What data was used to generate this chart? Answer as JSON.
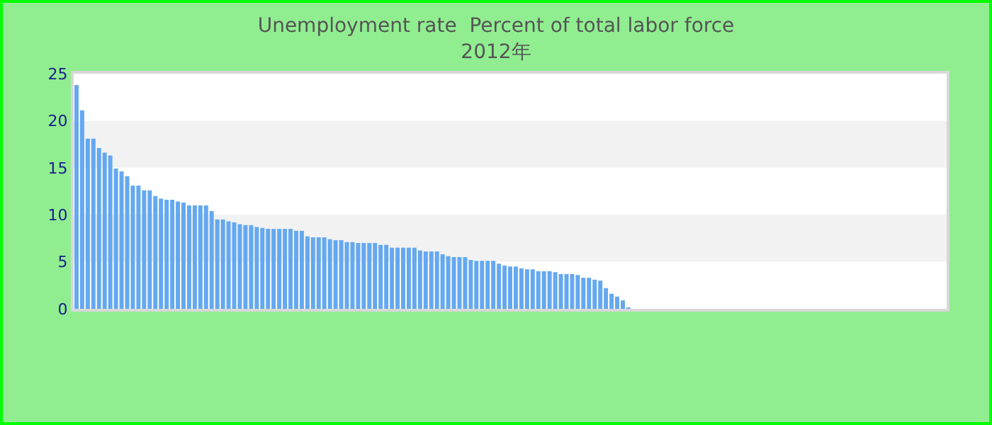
{
  "chart_data": {
    "type": "bar",
    "title": "Unemployment rate  Percent of total labor force\n2012年",
    "categories": [
      null,
      null,
      null,
      null,
      null,
      null,
      null,
      null,
      null,
      null,
      null,
      null,
      null,
      null,
      null,
      null,
      null,
      null,
      null,
      null,
      null,
      null,
      null,
      null,
      null,
      null,
      null,
      null,
      null,
      null,
      null,
      null,
      null,
      null,
      null,
      null,
      null,
      null,
      null,
      null,
      null,
      null,
      null,
      null,
      null,
      null,
      null,
      null,
      null,
      null,
      null,
      null,
      null,
      null,
      null,
      null,
      null,
      null,
      null,
      null,
      null,
      null,
      null,
      null,
      null,
      null,
      null,
      null,
      null,
      null,
      null,
      null,
      null,
      null,
      null,
      null,
      null,
      null,
      null,
      null,
      null,
      null,
      null,
      null,
      null,
      null,
      null,
      null,
      null,
      null,
      null,
      null,
      null,
      null,
      null,
      null,
      null,
      null,
      null,
      null,
      null,
      null,
      null,
      null,
      null,
      null,
      null,
      null,
      null,
      null,
      null,
      null,
      null,
      null,
      null,
      null,
      null,
      null,
      null,
      null,
      null,
      null,
      null,
      null,
      null,
      null,
      null,
      null,
      null,
      null,
      null,
      null,
      null,
      null,
      null,
      null,
      null,
      null,
      null,
      null,
      null,
      null,
      null,
      null,
      null,
      null,
      null,
      null,
      null,
      null,
      null,
      null,
      null,
      null,
      null
    ],
    "values": [
      23.8,
      21.1,
      18.1,
      18.1,
      17.1,
      16.6,
      16.3,
      14.9,
      14.6,
      14.1,
      13.1,
      13.1,
      12.6,
      12.6,
      12.0,
      11.7,
      11.6,
      11.6,
      11.4,
      11.3,
      11.0,
      11.0,
      11.0,
      11.0,
      10.4,
      9.5,
      9.5,
      9.3,
      9.2,
      9.0,
      8.9,
      8.9,
      8.7,
      8.6,
      8.5,
      8.5,
      8.5,
      8.5,
      8.5,
      8.3,
      8.3,
      7.7,
      7.6,
      7.6,
      7.6,
      7.4,
      7.3,
      7.3,
      7.1,
      7.1,
      7.0,
      7.0,
      7.0,
      7.0,
      6.8,
      6.8,
      6.5,
      6.5,
      6.5,
      6.5,
      6.5,
      6.2,
      6.1,
      6.1,
      6.1,
      5.8,
      5.6,
      5.5,
      5.5,
      5.5,
      5.2,
      5.1,
      5.1,
      5.1,
      5.1,
      4.8,
      4.6,
      4.5,
      4.5,
      4.3,
      4.2,
      4.2,
      4.0,
      4.0,
      4.0,
      3.9,
      3.7,
      3.7,
      3.7,
      3.6,
      3.3,
      3.3,
      3.1,
      3.0,
      2.2,
      1.6,
      1.3,
      0.9,
      0.1,
      null,
      null,
      null,
      null,
      null,
      null,
      null,
      null,
      null,
      null,
      null,
      null,
      null,
      null,
      null,
      null,
      null,
      null,
      null,
      null,
      null,
      null,
      null,
      null,
      null,
      null,
      null,
      null,
      null,
      null,
      null,
      null,
      null,
      null,
      null,
      null,
      null,
      null,
      null,
      null,
      null,
      null,
      null,
      null,
      null,
      null,
      null,
      null,
      null,
      null,
      null,
      null,
      null,
      null,
      null,
      null
    ],
    "color": "#64a8f0",
    "ylim": [
      0,
      25
    ],
    "yticks": [
      0,
      5,
      10,
      15,
      20,
      25
    ],
    "tick_labels": "y",
    "bands": [
      {
        "axis": "y",
        "from": 5,
        "to": 10,
        "color": "#f2f2f2"
      },
      {
        "axis": "y",
        "from": 15,
        "to": 20,
        "color": "#f2f2f2"
      }
    ],
    "grid": false
  }
}
